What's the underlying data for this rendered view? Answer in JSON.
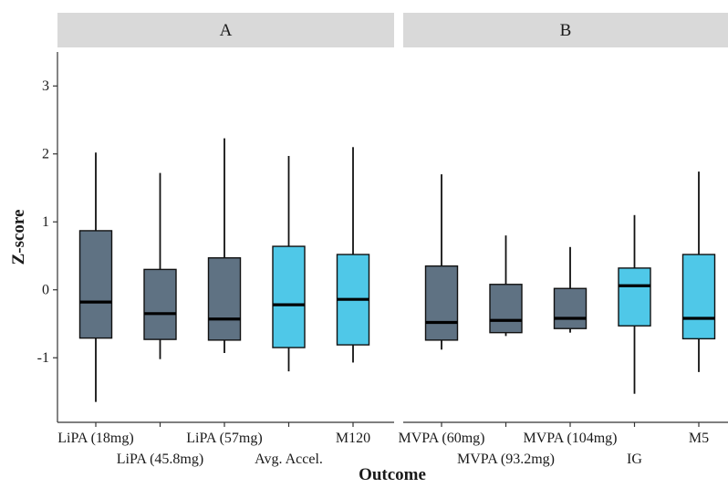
{
  "chart_data": {
    "type": "boxplot",
    "xlabel": "Outcome",
    "ylabel": "Z-score",
    "ylim": [
      -1.95,
      3.5
    ],
    "yticks": [
      -1,
      0,
      1,
      2,
      3
    ],
    "ytick_labels": [
      "-1",
      "0",
      "1",
      "2",
      "3"
    ],
    "grid": false,
    "legend": "none",
    "colors": {
      "dark": "#5f7283",
      "light": "#4fc8e8",
      "strip": "#d9d9d9"
    },
    "panels": [
      {
        "strip": "A",
        "boxes": [
          {
            "label": "LiPA (18mg)",
            "fill": "dark",
            "whisker_low": -1.65,
            "q1": -0.71,
            "median": -0.18,
            "q3": 0.87,
            "whisker_high": 2.02
          },
          {
            "label": "LiPA (45.8mg)",
            "fill": "dark",
            "whisker_low": -1.02,
            "q1": -0.73,
            "median": -0.35,
            "q3": 0.3,
            "whisker_high": 1.72
          },
          {
            "label": "LiPA (57mg)",
            "fill": "dark",
            "whisker_low": -0.93,
            "q1": -0.74,
            "median": -0.43,
            "q3": 0.47,
            "whisker_high": 2.23
          },
          {
            "label": "Avg. Accel.",
            "fill": "light",
            "whisker_low": -1.2,
            "q1": -0.85,
            "median": -0.22,
            "q3": 0.64,
            "whisker_high": 1.97
          },
          {
            "label": "M120",
            "fill": "light",
            "whisker_low": -1.07,
            "q1": -0.81,
            "median": -0.14,
            "q3": 0.52,
            "whisker_high": 2.1
          }
        ]
      },
      {
        "strip": "B",
        "boxes": [
          {
            "label": "MVPA (60mg)",
            "fill": "dark",
            "whisker_low": -0.88,
            "q1": -0.74,
            "median": -0.48,
            "q3": 0.35,
            "whisker_high": 1.7
          },
          {
            "label": "MVPA (93.2mg)",
            "fill": "dark",
            "whisker_low": -0.68,
            "q1": -0.63,
            "median": -0.45,
            "q3": 0.08,
            "whisker_high": 0.8
          },
          {
            "label": "MVPA (104mg)",
            "fill": "dark",
            "whisker_low": -0.63,
            "q1": -0.57,
            "median": -0.42,
            "q3": 0.02,
            "whisker_high": 0.63
          },
          {
            "label": "IG",
            "fill": "light",
            "whisker_low": -1.53,
            "q1": -0.53,
            "median": 0.06,
            "q3": 0.32,
            "whisker_high": 1.1
          },
          {
            "label": "M5",
            "fill": "light",
            "whisker_low": -1.21,
            "q1": -0.72,
            "median": -0.42,
            "q3": 0.52,
            "whisker_high": 1.74
          }
        ]
      }
    ]
  }
}
